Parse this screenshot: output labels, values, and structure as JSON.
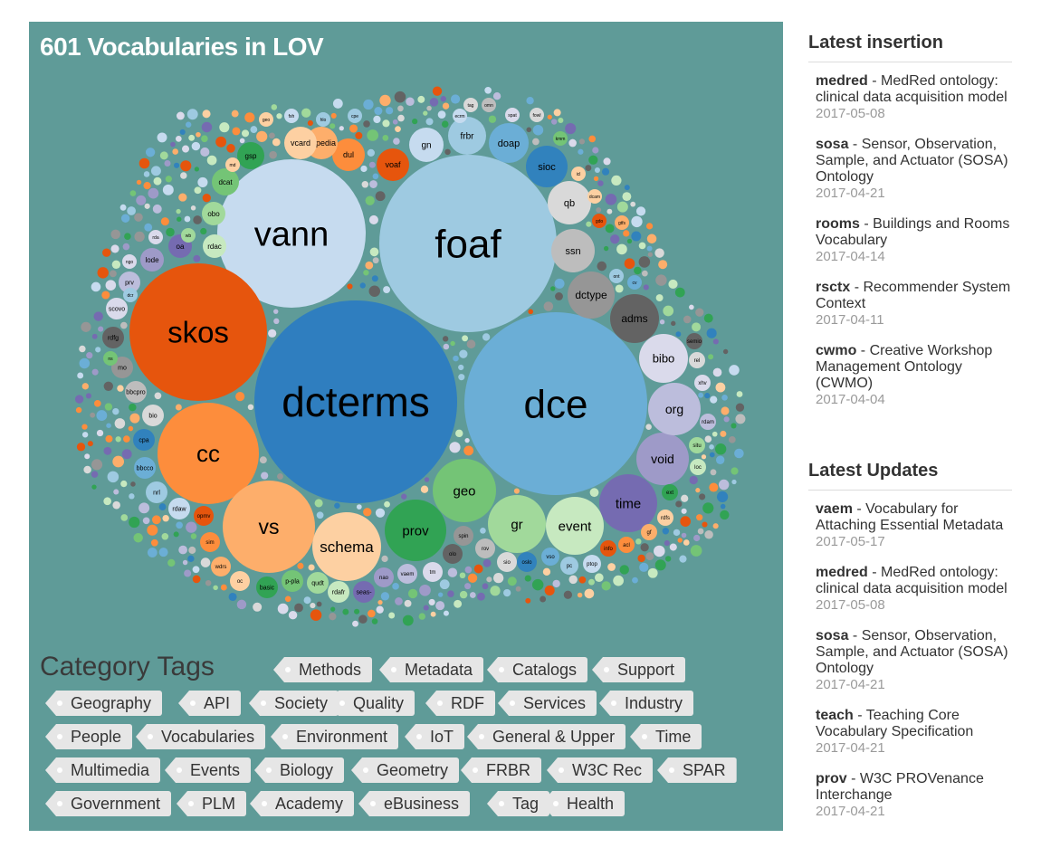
{
  "title": "601 Vocabularies in LOV",
  "colors": {
    "panel": "#5f9b98"
  },
  "bubbles": [
    {
      "label": "dcterms",
      "color": "#2f7ebf",
      "text": "#000000"
    },
    {
      "label": "dce",
      "color": "#6baed6",
      "text": "#000000"
    },
    {
      "label": "foaf",
      "color": "#9ecae1",
      "text": "#000000"
    },
    {
      "label": "vann",
      "color": "#c6dbef",
      "text": "#000000"
    },
    {
      "label": "skos",
      "color": "#e6550d",
      "text": "#000000"
    },
    {
      "label": "cc",
      "color": "#fd8d3c",
      "text": "#000000"
    },
    {
      "label": "vs",
      "color": "#fdae6b",
      "text": "#000000"
    },
    {
      "label": "schema",
      "color": "#fdd0a2",
      "text": "#000000"
    },
    {
      "label": "prov",
      "color": "#31a354",
      "text": "#000000"
    },
    {
      "label": "geo",
      "color": "#74c476",
      "text": "#000000"
    },
    {
      "label": "gr",
      "color": "#a1d99b",
      "text": "#000000"
    },
    {
      "label": "event",
      "color": "#c7e9c0",
      "text": "#000000"
    },
    {
      "label": "time",
      "color": "#756bb1",
      "text": "#000000"
    },
    {
      "label": "void",
      "color": "#9e9ac8",
      "text": "#000000"
    },
    {
      "label": "org",
      "color": "#bcbddc",
      "text": "#000000"
    },
    {
      "label": "bibo",
      "color": "#dadaeb",
      "text": "#000000"
    },
    {
      "label": "adms",
      "color": "#636363",
      "text": "#000000"
    },
    {
      "label": "dctype",
      "color": "#969696",
      "text": "#000000"
    },
    {
      "label": "ssn",
      "color": "#bdbdbd",
      "text": "#000000"
    },
    {
      "label": "qb",
      "color": "#d9d9d9",
      "text": "#000000"
    },
    {
      "label": "sioc",
      "color": "#3182bd",
      "text": "#000000"
    },
    {
      "label": "doap",
      "color": "#6baed6",
      "text": "#000000"
    },
    {
      "label": "frbr",
      "color": "#9ecae1",
      "text": "#000000"
    },
    {
      "label": "gn",
      "color": "#c6dbef",
      "text": "#000000"
    },
    {
      "label": "voaf",
      "color": "#e6550d",
      "text": "#000000"
    },
    {
      "label": "dul",
      "color": "#fd8d3c",
      "text": "#000000"
    },
    {
      "label": "dbpedia",
      "color": "#fdae6b",
      "text": "#000000"
    },
    {
      "label": "vcard",
      "color": "#fdd0a2",
      "text": "#000000"
    },
    {
      "label": "gsp",
      "color": "#31a354",
      "text": "#000000"
    },
    {
      "label": "dcat",
      "color": "#74c476",
      "text": "#000000"
    },
    {
      "label": "obo",
      "color": "#a1d99b",
      "text": "#000000"
    },
    {
      "label": "rdac",
      "color": "#c7e9c0",
      "text": "#000000"
    },
    {
      "label": "oa",
      "color": "#756bb1",
      "text": "#000000"
    },
    {
      "label": "lode",
      "color": "#9e9ac8",
      "text": "#000000"
    },
    {
      "label": "prv",
      "color": "#bcbddc",
      "text": "#000000"
    },
    {
      "label": "scovo",
      "color": "#dadaeb",
      "text": "#000000"
    },
    {
      "label": "rdfg",
      "color": "#636363",
      "text": "#000000"
    },
    {
      "label": "mo",
      "color": "#969696",
      "text": "#000000"
    },
    {
      "label": "bbcpro",
      "color": "#bdbdbd",
      "text": "#000000"
    },
    {
      "label": "bio",
      "color": "#d9d9d9",
      "text": "#000000"
    },
    {
      "label": "cpa",
      "color": "#3182bd",
      "text": "#000000"
    },
    {
      "label": "bbcco",
      "color": "#6baed6",
      "text": "#000000"
    },
    {
      "label": "nrl",
      "color": "#9ecae1",
      "text": "#000000"
    },
    {
      "label": "rdaw",
      "color": "#c6dbef",
      "text": "#000000"
    },
    {
      "label": "opmv",
      "color": "#e6550d",
      "text": "#000000"
    },
    {
      "label": "sim",
      "color": "#fd8d3c",
      "text": "#000000"
    },
    {
      "label": "wdrs",
      "color": "#fdae6b",
      "text": "#000000"
    },
    {
      "label": "oc",
      "color": "#fdd0a2",
      "text": "#000000"
    },
    {
      "label": "basic",
      "color": "#31a354",
      "text": "#000000"
    },
    {
      "label": "p-pla",
      "color": "#74c476",
      "text": "#000000"
    },
    {
      "label": "qudt",
      "color": "#a1d99b",
      "text": "#000000"
    },
    {
      "label": "rdafr",
      "color": "#c7e9c0",
      "text": "#000000"
    },
    {
      "label": "seas-",
      "color": "#756bb1",
      "text": "#000000"
    },
    {
      "label": "nao",
      "color": "#9e9ac8",
      "text": "#000000"
    },
    {
      "label": "vaem",
      "color": "#bcbddc",
      "text": "#000000"
    },
    {
      "label": "tm",
      "color": "#dadaeb",
      "text": "#000000"
    },
    {
      "label": "olo",
      "color": "#636363",
      "text": "#000000"
    },
    {
      "label": "spin",
      "color": "#969696",
      "text": "#000000"
    },
    {
      "label": "rov",
      "color": "#bdbdbd",
      "text": "#000000"
    },
    {
      "label": "sio",
      "color": "#d9d9d9",
      "text": "#000000"
    },
    {
      "label": "oslo",
      "color": "#3182bd",
      "text": "#000000"
    },
    {
      "label": "vso",
      "color": "#6baed6",
      "text": "#000000"
    },
    {
      "label": "pc",
      "color": "#9ecae1",
      "text": "#000000"
    },
    {
      "label": "ptop",
      "color": "#c6dbef",
      "text": "#000000"
    },
    {
      "label": "info",
      "color": "#e6550d",
      "text": "#000000"
    },
    {
      "label": "acl",
      "color": "#fd8d3c",
      "text": "#000000"
    },
    {
      "label": "gf",
      "color": "#fdae6b",
      "text": "#000000"
    },
    {
      "label": "rdfs",
      "color": "#fdd0a2",
      "text": "#000000"
    },
    {
      "label": "ext",
      "color": "#31a354",
      "text": "#000000"
    },
    {
      "label": "situ",
      "color": "#a1d99b",
      "text": "#000000"
    },
    {
      "label": "loc",
      "color": "#c7e9c0",
      "text": "#000000"
    },
    {
      "label": "rdam",
      "color": "#bcbddc",
      "text": "#000000"
    },
    {
      "label": "xhv",
      "color": "#dadaeb",
      "text": "#000000"
    },
    {
      "label": "rel",
      "color": "#d9d9d9",
      "text": "#000000"
    },
    {
      "label": "semio",
      "color": "#636363",
      "text": "#000000"
    },
    {
      "label": "ont",
      "color": "#9ecae1",
      "text": "#000000"
    },
    {
      "label": "cv",
      "color": "#6baed6",
      "text": "#000000"
    },
    {
      "label": "gtfs",
      "color": "#fdae6b",
      "text": "#000000"
    },
    {
      "label": "gdo",
      "color": "#e6550d",
      "text": "#000000"
    },
    {
      "label": "dcam",
      "color": "#fdd0a2",
      "text": "#000000"
    },
    {
      "label": "icl",
      "color": "#fdd0a2",
      "text": "#000000"
    },
    {
      "label": "kmm",
      "color": "#74c476",
      "text": "#000000"
    },
    {
      "label": "fowl",
      "color": "#d9d9d9",
      "text": "#000000"
    },
    {
      "label": "spat",
      "color": "#dadaeb",
      "text": "#000000"
    },
    {
      "label": "omn",
      "color": "#bdbdbd",
      "text": "#000000"
    },
    {
      "label": "tag",
      "color": "#d9d9d9",
      "text": "#000000"
    },
    {
      "label": "ecrm",
      "color": "#c6dbef",
      "text": "#000000"
    },
    {
      "label": "cpe",
      "color": "#9ecae1",
      "text": "#000000"
    },
    {
      "label": "hlo",
      "color": "#9ecae1",
      "text": "#000000"
    },
    {
      "label": "fsh",
      "color": "#c6dbef",
      "text": "#000000"
    },
    {
      "label": "geo",
      "color": "#fdd0a2",
      "text": "#000000"
    },
    {
      "label": "md",
      "color": "#fdd0a2",
      "text": "#000000"
    },
    {
      "label": "wb",
      "color": "#a1d99b",
      "text": "#000000"
    },
    {
      "label": "rda",
      "color": "#dadaeb",
      "text": "#000000"
    },
    {
      "label": "ngo",
      "color": "#dadaeb",
      "text": "#000000"
    },
    {
      "label": "dcr",
      "color": "#9ecae1",
      "text": "#000000"
    },
    {
      "label": "ns",
      "color": "#74c476",
      "text": "#000000"
    }
  ],
  "category_heading": "Category Tags",
  "tags": [
    "Methods",
    "Metadata",
    "Catalogs",
    "Support",
    "Geography",
    "API",
    "Society",
    "Quality",
    "RDF",
    "Services",
    "Industry",
    "People",
    "Vocabularies",
    "Environment",
    "IoT",
    "General & Upper",
    "Time",
    "Multimedia",
    "Events",
    "Biology",
    "Geometry",
    "FRBR",
    "W3C Rec",
    "SPAR",
    "Government",
    "PLM",
    "Academy",
    "eBusiness",
    "Tag",
    "Health"
  ],
  "sidebar": {
    "latest_insertion": {
      "title": "Latest insertion",
      "items": [
        {
          "prefix": "medred",
          "sep": " - ",
          "desc": "MedRed ontology: clinical data acquisition model",
          "date": "2017-05-08"
        },
        {
          "prefix": "sosa",
          "sep": " - ",
          "desc": "Sensor, Observation, Sample, and Actuator (SOSA) Ontology",
          "date": "2017-04-21"
        },
        {
          "prefix": "rooms",
          "sep": " - ",
          "desc": "Buildings and Rooms Vocabulary",
          "date": "2017-04-14"
        },
        {
          "prefix": "rsctx",
          "sep": " - ",
          "desc": "Recommender System Context",
          "date": "2017-04-11"
        },
        {
          "prefix": "cwmo",
          "sep": " - ",
          "desc": "Creative Workshop Management Ontology (CWMO)",
          "date": "2017-04-04"
        }
      ]
    },
    "latest_updates": {
      "title": "Latest Updates",
      "items": [
        {
          "prefix": "vaem",
          "sep": " - ",
          "desc": "Vocabulary for Attaching Essential Metadata",
          "date": "2017-05-17"
        },
        {
          "prefix": "medred",
          "sep": " - ",
          "desc": "MedRed ontology: clinical data acquisition model",
          "date": "2017-05-08"
        },
        {
          "prefix": "sosa",
          "sep": " - ",
          "desc": "Sensor, Observation, Sample, and Actuator (SOSA) Ontology",
          "date": "2017-04-21"
        },
        {
          "prefix": "teach",
          "sep": " - ",
          "desc": "Teaching Core Vocabulary Specification",
          "date": "2017-04-21"
        },
        {
          "prefix": "prov",
          "sep": " - ",
          "desc": "W3C PROVenance Interchange",
          "date": "2017-04-21"
        }
      ]
    }
  }
}
